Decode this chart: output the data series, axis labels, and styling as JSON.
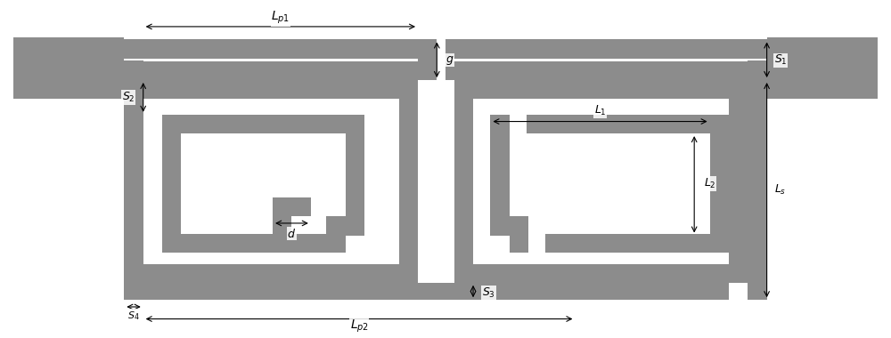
{
  "bg": "#ffffff",
  "gc": "#8c8c8c",
  "fig_w": 10.0,
  "fig_h": 3.8,
  "dpi": 100,
  "labels": {
    "Lp1": "L_{p1}",
    "Lp2": "L_{p2}",
    "Ls": "L_s",
    "L1": "L_1",
    "L2": "L_2",
    "S1": "S_1",
    "S2": "S_2",
    "S3": "S_3",
    "S4": "S_4",
    "g": "g",
    "d": "d"
  }
}
